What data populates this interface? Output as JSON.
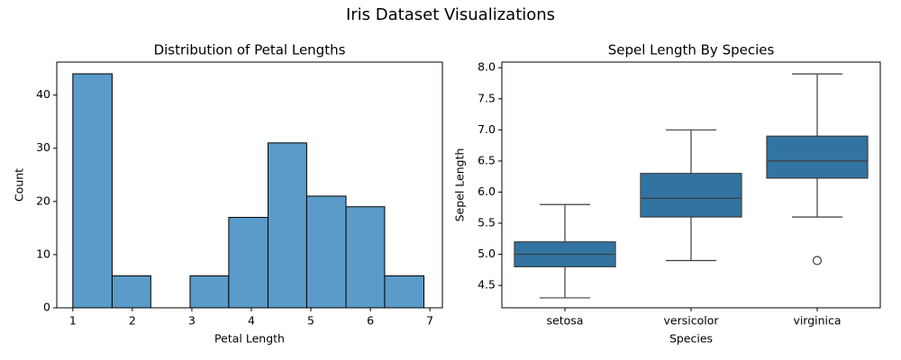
{
  "title": "Iris Dataset Visualizations",
  "chart_data": [
    {
      "type": "histogram",
      "title": "Distribution of Petal Lengths",
      "xlabel": "Petal Length",
      "ylabel": "Count",
      "bins": [
        1.0,
        1.66,
        2.31,
        2.97,
        3.62,
        4.28,
        4.93,
        5.59,
        6.24,
        6.9
      ],
      "values": [
        44,
        6,
        0,
        6,
        17,
        31,
        21,
        19,
        6
      ],
      "color": "#5a9bc9",
      "edgecolor": "#000000",
      "xlim": [
        0.73,
        7.21
      ],
      "xticks": [
        1,
        2,
        3,
        4,
        5,
        6,
        7
      ],
      "ylim": [
        0,
        46.2
      ],
      "yticks": [
        0,
        10,
        20,
        30,
        40
      ]
    },
    {
      "type": "box",
      "title": "Sepel Length By Species",
      "xlabel": "Species",
      "ylabel": "Sepel Length",
      "categories": [
        "setosa",
        "versicolor",
        "virginica"
      ],
      "boxes": [
        {
          "whislo": 4.3,
          "q1": 4.8,
          "med": 5.0,
          "q3": 5.2,
          "whishi": 5.8
        },
        {
          "whislo": 4.9,
          "q1": 5.6,
          "med": 5.9,
          "q3": 6.3,
          "whishi": 7.0
        },
        {
          "whislo": 5.6,
          "q1": 6.225,
          "med": 6.5,
          "q3": 6.9,
          "whishi": 7.9,
          "fliers": [
            4.9
          ]
        }
      ],
      "color": "#3274a1",
      "edgecolor": "#3d3d3d",
      "ylim": [
        4.14,
        8.09
      ],
      "yticks": [
        4.5,
        {
          "value": 5,
          "label": "5.0"
        },
        5.5,
        {
          "value": 6,
          "label": "6.0"
        },
        6.5,
        {
          "value": 7,
          "label": "7.0"
        },
        7.5,
        {
          "value": 8,
          "label": "8.0"
        }
      ]
    }
  ]
}
